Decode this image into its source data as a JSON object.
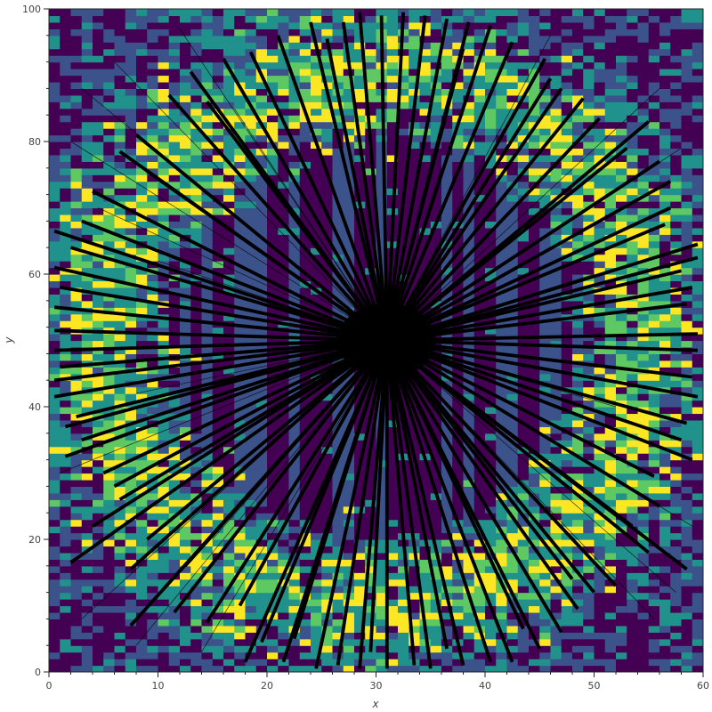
{
  "chart_data": {
    "type": "heatmap",
    "title": "",
    "xlabel": "x",
    "ylabel": "y",
    "xlim": [
      0,
      60
    ],
    "ylim": [
      0,
      100
    ],
    "x_ticks": [
      {
        "value": 0,
        "label": "0"
      },
      {
        "value": 10,
        "label": "10"
      },
      {
        "value": 20,
        "label": "20"
      },
      {
        "value": 30,
        "label": "30"
      },
      {
        "value": 40,
        "label": "40"
      },
      {
        "value": 50,
        "label": "50"
      },
      {
        "value": 60,
        "label": "60"
      }
    ],
    "y_ticks": [
      {
        "value": 0,
        "label": "0"
      },
      {
        "value": 20,
        "label": "20"
      },
      {
        "value": 40,
        "label": "40"
      },
      {
        "value": 60,
        "label": "60"
      },
      {
        "value": 80,
        "label": "80"
      },
      {
        "value": 100,
        "label": "100"
      }
    ],
    "grid": false,
    "legend": "none",
    "colormap": "viridis",
    "colormap_colors": [
      "#440154",
      "#3b528b",
      "#21918c",
      "#5ec962",
      "#fde725"
    ],
    "heatmap": {
      "x_bins": 60,
      "y_bins": 100,
      "ring_center": [
        30,
        50
      ],
      "ring_radius": 40,
      "description_of_pattern": "bright yellow/green ring near radius ~40 around center; dark purple/blue interior and corners"
    },
    "overlay_lines": {
      "color": "#000000",
      "center": [
        31,
        50
      ],
      "thick_segments": [
        [
          0.5,
          66.5
        ],
        [
          1.0,
          58.0
        ],
        [
          0.5,
          44.0
        ],
        [
          1.5,
          37.0
        ],
        [
          1.5,
          32.5
        ],
        [
          2.0,
          16.5
        ],
        [
          4.0,
          22.0
        ],
        [
          6.5,
          26.0
        ],
        [
          7.5,
          15.5
        ],
        [
          7.5,
          7.0
        ],
        [
          10.5,
          12.5
        ],
        [
          11.5,
          9.0
        ],
        [
          14.5,
          7.5
        ],
        [
          18.0,
          1.5
        ],
        [
          19.5,
          4.5
        ],
        [
          21.5,
          1.5
        ],
        [
          24.5,
          0.5
        ],
        [
          26.5,
          1.0
        ],
        [
          28.5,
          0.5
        ],
        [
          31.0,
          0.5
        ],
        [
          33.5,
          1.0
        ],
        [
          35.0,
          0.5
        ],
        [
          38.0,
          1.0
        ],
        [
          40.5,
          1.5
        ],
        [
          42.5,
          1.5
        ],
        [
          45.0,
          3.5
        ],
        [
          47.0,
          6.0
        ],
        [
          48.5,
          9.5
        ],
        [
          50.0,
          12.0
        ],
        [
          52.0,
          13.0
        ],
        [
          55.0,
          18.0
        ],
        [
          58.5,
          15.5
        ],
        [
          56.0,
          25.0
        ],
        [
          59.0,
          32.0
        ],
        [
          58.5,
          37.5
        ],
        [
          59.5,
          41.5
        ],
        [
          59.0,
          44.5
        ],
        [
          59.5,
          48.5
        ],
        [
          59.5,
          51.0
        ],
        [
          58.5,
          55.5
        ],
        [
          59.0,
          58.0
        ],
        [
          59.5,
          62.5
        ],
        [
          59.5,
          64.5
        ],
        [
          57.0,
          70.0
        ],
        [
          57.0,
          74.0
        ],
        [
          56.0,
          77.0
        ],
        [
          55.0,
          83.0
        ],
        [
          50.5,
          83.5
        ],
        [
          49.0,
          86.5
        ],
        [
          47.0,
          88.0
        ],
        [
          45.5,
          92.5
        ],
        [
          42.5,
          95.0
        ],
        [
          40.5,
          97.5
        ],
        [
          38.5,
          98.0
        ],
        [
          36.5,
          98.5
        ],
        [
          34.5,
          99.0
        ],
        [
          32.5,
          99.5
        ],
        [
          30.5,
          99.0
        ],
        [
          28.5,
          99.5
        ],
        [
          27.0,
          98.0
        ],
        [
          24.0,
          98.0
        ],
        [
          21.0,
          96.0
        ],
        [
          18.5,
          93.5
        ],
        [
          16.0,
          92.5
        ],
        [
          13.0,
          90.5
        ],
        [
          11.0,
          87.0
        ],
        [
          8.0,
          81.0
        ],
        [
          6.5,
          78.5
        ],
        [
          4.0,
          72.5
        ],
        [
          2.0,
          64.0
        ],
        [
          0.5,
          61.0
        ],
        [
          0.5,
          55.0
        ],
        [
          0.5,
          51.5
        ],
        [
          0.5,
          48.5
        ],
        [
          1.0,
          46.0
        ],
        [
          0.5,
          41.5
        ],
        [
          2.5,
          38.5
        ],
        [
          3.0,
          35.0
        ],
        [
          5.0,
          30.0
        ],
        [
          6.0,
          28.0
        ],
        [
          9.0,
          20.0
        ],
        [
          12.5,
          16.0
        ],
        [
          17.5,
          10.0
        ],
        [
          22.5,
          5.0
        ],
        [
          29.5,
          3.0
        ],
        [
          36.5,
          3.5
        ],
        [
          43.5,
          6.5
        ],
        [
          48.0,
          14.0
        ],
        [
          53.5,
          22.0
        ],
        [
          55.5,
          29.5
        ],
        [
          58.0,
          35.0
        ],
        [
          58.0,
          60.5
        ],
        [
          56.5,
          67.5
        ],
        [
          53.0,
          79.0
        ],
        [
          46.0,
          89.5
        ],
        [
          38.0,
          94.0
        ],
        [
          25.5,
          95.5
        ],
        [
          14.5,
          86.0
        ],
        [
          9.0,
          75.5
        ],
        [
          3.0,
          68.0
        ]
      ],
      "thin_segments": [
        [
          3.0,
          88.0
        ],
        [
          6.0,
          92.0
        ],
        [
          12.0,
          97.0
        ],
        [
          2.0,
          80.0
        ],
        [
          4.5,
          70.0
        ],
        [
          1.0,
          30.0
        ],
        [
          3.0,
          8.0
        ],
        [
          8.0,
          4.0
        ],
        [
          14.0,
          3.0
        ],
        [
          55.5,
          8.0
        ],
        [
          57.5,
          12.0
        ],
        [
          59.0,
          22.0
        ],
        [
          58.0,
          79.0
        ],
        [
          56.0,
          88.0
        ],
        [
          46.0,
          96.0
        ],
        [
          22.0,
          92.0
        ],
        [
          17.0,
          85.0
        ],
        [
          10.0,
          62.0
        ],
        [
          8.0,
          42.0
        ],
        [
          52.0,
          40.0
        ],
        [
          50.0,
          60.0
        ],
        [
          15.0,
          20.0
        ],
        [
          44.0,
          20.0
        ],
        [
          27.0,
          82.0
        ],
        [
          36.0,
          76.0
        ]
      ]
    }
  }
}
